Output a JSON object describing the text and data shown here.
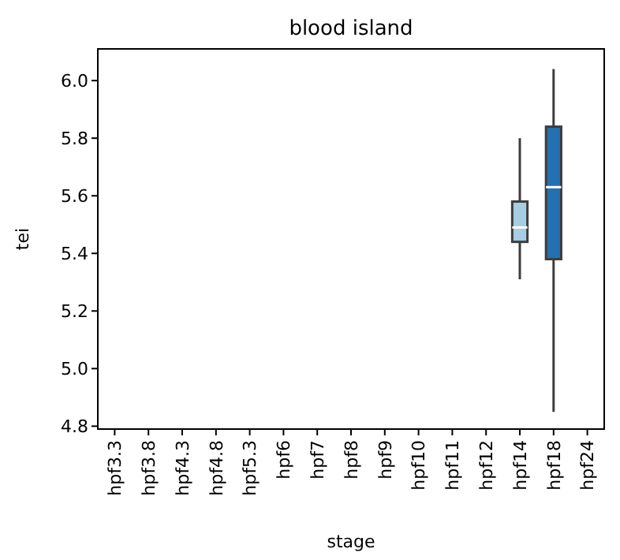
{
  "chart_data": {
    "type": "box",
    "title": "blood island",
    "xlabel": "stage",
    "ylabel": "tei",
    "categories": [
      "hpf3.3",
      "hpf3.8",
      "hpf4.3",
      "hpf4.8",
      "hpf5.3",
      "hpf6",
      "hpf7",
      "hpf8",
      "hpf9",
      "hpf10",
      "hpf11",
      "hpf12",
      "hpf14",
      "hpf18",
      "hpf24"
    ],
    "boxes": [
      null,
      null,
      null,
      null,
      null,
      null,
      null,
      null,
      null,
      null,
      null,
      null,
      {
        "low": 5.31,
        "q1": 5.44,
        "median": 5.49,
        "q3": 5.58,
        "high": 5.8
      },
      {
        "low": 4.85,
        "q1": 5.38,
        "median": 5.63,
        "q3": 5.84,
        "high": 6.04
      },
      null
    ],
    "colors": [
      null,
      null,
      null,
      null,
      null,
      null,
      null,
      null,
      null,
      null,
      null,
      null,
      "#a6cde3",
      "#2371b1",
      null
    ],
    "ylim": [
      4.79,
      6.11
    ],
    "yticks": [
      4.8,
      {
        "value": 5,
        "label": "5.0"
      },
      5.2,
      5.4,
      5.6,
      5.8,
      {
        "value": 6,
        "label": "6.0"
      }
    ]
  }
}
